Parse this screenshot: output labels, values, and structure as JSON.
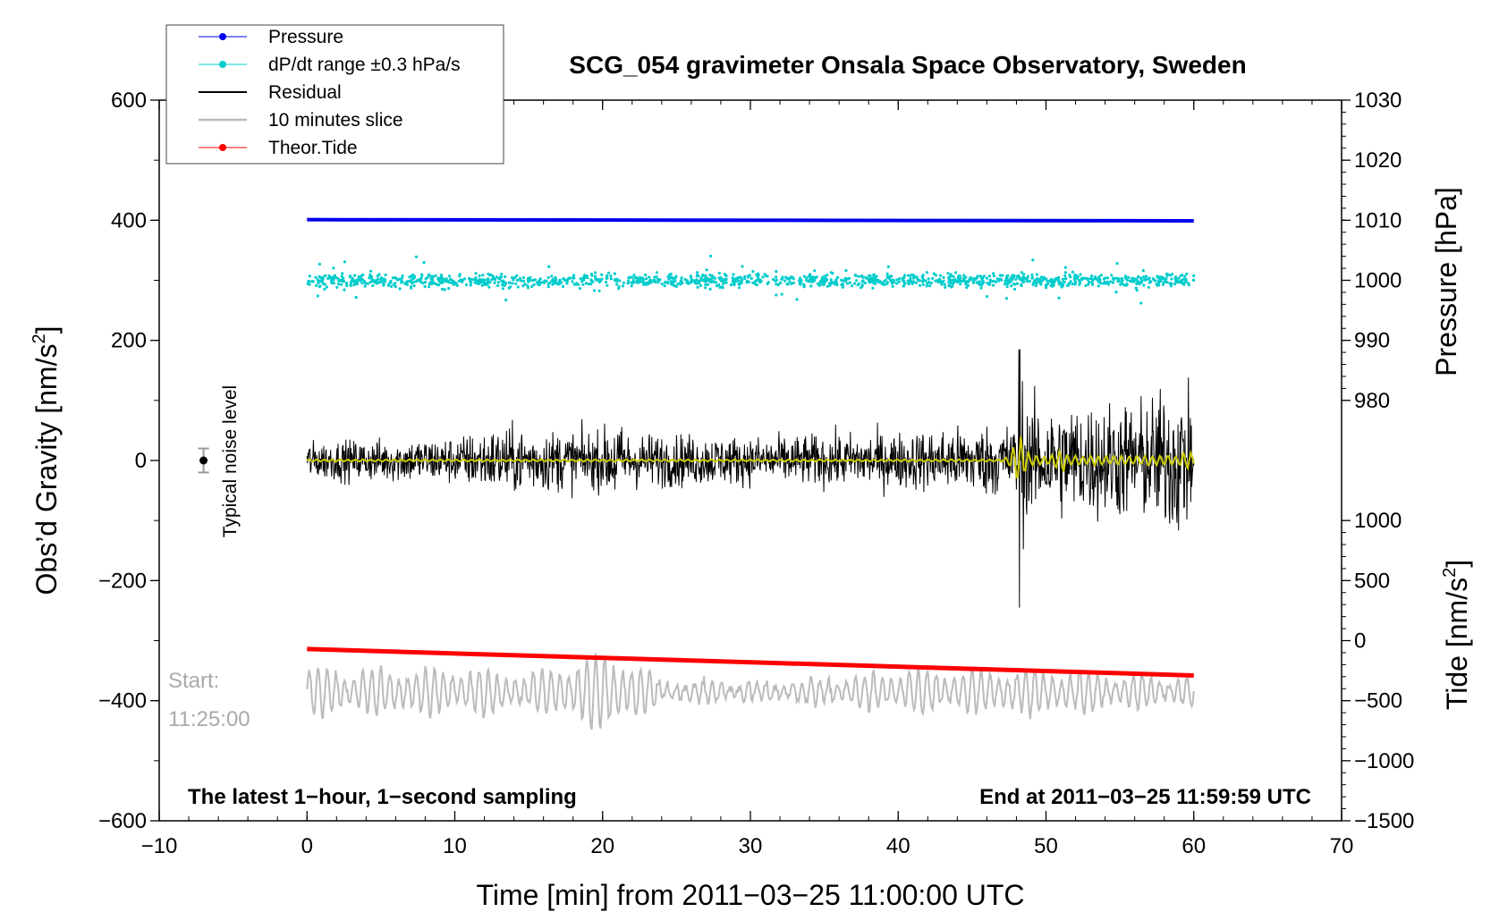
{
  "chart_data": {
    "type": "line",
    "title": "SCG_054 gravimeter Onsala Space Observatory, Sweden",
    "xlabel": "Time [min] from 2011−03−25 11:00:00 UTC",
    "ylabel_left": "Obs’d Gravity [nm/s",
    "ylabel_left_sup": "2",
    "ylabel_left_end": "]",
    "ylabel_right_pressure": "Pressure [hPa]",
    "ylabel_right_tide": "Tide [nm/s",
    "ylabel_right_tide_sup": "2",
    "ylabel_right_tide_end": "]",
    "xlim": [
      -10,
      70
    ],
    "ylim_left": [
      -600,
      600
    ],
    "pressure_range": [
      980,
      1030
    ],
    "tide_range": [
      -1500,
      1000
    ],
    "x_ticks": [
      {
        "v": -10,
        "label": "−10"
      },
      {
        "v": 0,
        "label": "0"
      },
      {
        "v": 10,
        "label": "10"
      },
      {
        "v": 20,
        "label": "20"
      },
      {
        "v": 30,
        "label": "30"
      },
      {
        "v": 40,
        "label": "40"
      },
      {
        "v": 50,
        "label": "50"
      },
      {
        "v": 60,
        "label": "60"
      },
      {
        "v": 70,
        "label": "70"
      }
    ],
    "y_left_ticks": [
      {
        "v": 600,
        "label": "600"
      },
      {
        "v": 400,
        "label": "400"
      },
      {
        "v": 200,
        "label": "200"
      },
      {
        "v": 0,
        "label": "0"
      },
      {
        "v": -200,
        "label": "−200"
      },
      {
        "v": -400,
        "label": "−400"
      },
      {
        "v": -600,
        "label": "−600"
      }
    ],
    "pressure_ticks": [
      {
        "v": 1030,
        "label": "1030"
      },
      {
        "v": 1020,
        "label": "1020"
      },
      {
        "v": 1010,
        "label": "1010"
      },
      {
        "v": 1000,
        "label": "1000"
      },
      {
        "v": 990,
        "label": "990"
      },
      {
        "v": 980,
        "label": "980"
      }
    ],
    "tide_ticks": [
      {
        "v": 1000,
        "label": "1000"
      },
      {
        "v": 500,
        "label": "500"
      },
      {
        "v": 0,
        "label": "0"
      },
      {
        "v": -500,
        "label": "−500"
      },
      {
        "v": -1000,
        "label": "−1000"
      },
      {
        "v": -1500,
        "label": "−1500"
      }
    ],
    "legend": [
      {
        "label": "Pressure",
        "color": "#0000ee",
        "marker": "dot"
      },
      {
        "label": "dP/dt range ±0.3 hPa/s",
        "color": "#00cccc",
        "marker": "dot"
      },
      {
        "label": "Residual",
        "color": "#000000",
        "marker": "line"
      },
      {
        "label": "10 minutes slice",
        "color": "#bbbbbb",
        "marker": "line"
      },
      {
        "label": "Theor.Tide",
        "color": "#ff0000",
        "marker": "dot"
      }
    ],
    "legend_position": "top-left",
    "series": [
      {
        "name": "Pressure",
        "color": "#0000ee",
        "x": [
          0,
          60
        ],
        "y_hpa": [
          1010.1,
          1009.9
        ]
      },
      {
        "name": "dP/dt range ±0.3 hPa/s",
        "color": "#00cccc",
        "center_hpa": 1000,
        "typical_spread_hpa": 2
      },
      {
        "name": "Residual",
        "color": "#000000",
        "x_range": [
          0,
          60
        ],
        "center_nms2": 0,
        "envelope": [
          [
            0,
            40
          ],
          [
            10,
            50
          ],
          [
            13,
            70
          ],
          [
            20,
            60
          ],
          [
            20.8,
            100
          ],
          [
            21.5,
            60
          ],
          [
            30,
            50
          ],
          [
            40,
            60
          ],
          [
            48,
            80
          ],
          [
            48.3,
            200
          ],
          [
            48.6,
            120
          ],
          [
            52,
            120
          ],
          [
            57,
            130
          ],
          [
            59,
            170
          ],
          [
            60,
            120
          ]
        ]
      },
      {
        "name": "Residual filtered",
        "color": "#cccc00",
        "x_range": [
          0,
          60
        ],
        "center_nms2": 0,
        "peaks": [
          [
            48.2,
            40
          ],
          [
            51,
            20
          ],
          [
            59.5,
            15
          ]
        ]
      },
      {
        "name": "10 minutes slice",
        "color": "#bbbbbb",
        "x_range": [
          0,
          60
        ],
        "center_nms2": -385,
        "amplitude_nms2": 40,
        "envelope": [
          [
            0,
            40
          ],
          [
            12,
            40
          ],
          [
            15,
            30
          ],
          [
            19,
            60
          ],
          [
            21,
            70
          ],
          [
            24,
            20
          ],
          [
            31,
            15
          ],
          [
            40,
            35
          ],
          [
            50,
            40
          ],
          [
            55,
            30
          ],
          [
            60,
            25
          ]
        ]
      },
      {
        "name": "Theor.Tide",
        "color": "#ff0000",
        "x": [
          0,
          60
        ],
        "y_tide_nms2": [
          -70,
          -290
        ]
      }
    ],
    "noise_marker": {
      "x": -7,
      "y": 0,
      "err": 20,
      "label": "Typical noise level"
    },
    "annotations": {
      "start_label": "Start:",
      "start_time": "11:25:00",
      "bottom_left": "The latest 1−hour, 1−second sampling",
      "bottom_right": "End at 2011−03−25 11:59:59 UTC"
    },
    "grid": false
  }
}
